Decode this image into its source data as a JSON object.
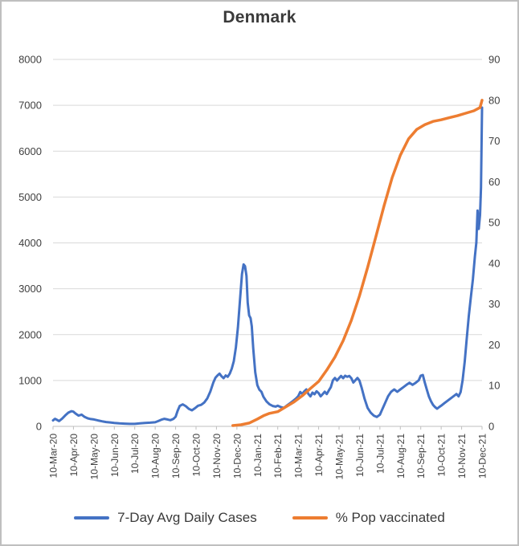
{
  "chart_data": {
    "type": "line",
    "title": "Denmark",
    "grid": "horizontal",
    "legend_position": "bottom",
    "x_range": [
      0,
      21
    ],
    "x_tick_labels": [
      "10-Mar-20",
      "10-Apr-20",
      "10-May-20",
      "10-Jun-20",
      "10-Jul-20",
      "10-Aug-20",
      "10-Sep-20",
      "10-Oct-20",
      "10-Nov-20",
      "10-Dec-20",
      "10-Jan-21",
      "10-Feb-21",
      "10-Mar-21",
      "10-Apr-21",
      "10-May-21",
      "10-Jun-21",
      "10-Jul-21",
      "10-Aug-21",
      "10-Sep-21",
      "10-Oct-21",
      "10-Nov-21",
      "10-Dec-21"
    ],
    "left_axis": {
      "min": 0,
      "max": 8000,
      "step": 1000
    },
    "right_axis": {
      "min": 0,
      "max": 90,
      "step": 10
    },
    "series": [
      {
        "name": "7-Day Avg Daily Cases",
        "axis": "left",
        "color": "#4472C4",
        "width": 3,
        "points": [
          [
            0.0,
            130
          ],
          [
            0.1,
            165
          ],
          [
            0.2,
            140
          ],
          [
            0.3,
            115
          ],
          [
            0.45,
            170
          ],
          [
            0.6,
            240
          ],
          [
            0.75,
            300
          ],
          [
            0.9,
            330
          ],
          [
            1.0,
            320
          ],
          [
            1.1,
            280
          ],
          [
            1.25,
            235
          ],
          [
            1.4,
            255
          ],
          [
            1.55,
            205
          ],
          [
            1.7,
            175
          ],
          [
            1.85,
            160
          ],
          [
            2.0,
            150
          ],
          [
            2.2,
            130
          ],
          [
            2.4,
            110
          ],
          [
            2.6,
            95
          ],
          [
            2.8,
            85
          ],
          [
            3.0,
            75
          ],
          [
            3.25,
            65
          ],
          [
            3.5,
            60
          ],
          [
            3.75,
            55
          ],
          [
            4.0,
            55
          ],
          [
            4.25,
            65
          ],
          [
            4.5,
            75
          ],
          [
            4.75,
            80
          ],
          [
            5.0,
            90
          ],
          [
            5.15,
            115
          ],
          [
            5.3,
            145
          ],
          [
            5.45,
            165
          ],
          [
            5.6,
            150
          ],
          [
            5.75,
            135
          ],
          [
            5.9,
            165
          ],
          [
            6.0,
            210
          ],
          [
            6.1,
            340
          ],
          [
            6.2,
            445
          ],
          [
            6.35,
            480
          ],
          [
            6.5,
            440
          ],
          [
            6.65,
            380
          ],
          [
            6.8,
            350
          ],
          [
            6.95,
            395
          ],
          [
            7.1,
            450
          ],
          [
            7.25,
            470
          ],
          [
            7.4,
            520
          ],
          [
            7.55,
            610
          ],
          [
            7.7,
            760
          ],
          [
            7.85,
            960
          ],
          [
            7.95,
            1060
          ],
          [
            8.05,
            1110
          ],
          [
            8.15,
            1150
          ],
          [
            8.25,
            1090
          ],
          [
            8.35,
            1050
          ],
          [
            8.45,
            1110
          ],
          [
            8.55,
            1080
          ],
          [
            8.65,
            1150
          ],
          [
            8.75,
            1260
          ],
          [
            8.85,
            1420
          ],
          [
            8.95,
            1720
          ],
          [
            9.05,
            2150
          ],
          [
            9.15,
            2750
          ],
          [
            9.25,
            3320
          ],
          [
            9.33,
            3530
          ],
          [
            9.4,
            3490
          ],
          [
            9.47,
            3280
          ],
          [
            9.53,
            2700
          ],
          [
            9.6,
            2420
          ],
          [
            9.67,
            2360
          ],
          [
            9.73,
            2180
          ],
          [
            9.8,
            1700
          ],
          [
            9.9,
            1180
          ],
          [
            10.0,
            900
          ],
          [
            10.1,
            800
          ],
          [
            10.2,
            755
          ],
          [
            10.3,
            645
          ],
          [
            10.45,
            545
          ],
          [
            10.6,
            480
          ],
          [
            10.75,
            445
          ],
          [
            10.9,
            430
          ],
          [
            11.0,
            450
          ],
          [
            11.15,
            420
          ],
          [
            11.3,
            405
          ],
          [
            11.45,
            455
          ],
          [
            11.6,
            505
          ],
          [
            11.75,
            555
          ],
          [
            11.9,
            610
          ],
          [
            12.0,
            655
          ],
          [
            12.1,
            750
          ],
          [
            12.2,
            705
          ],
          [
            12.3,
            765
          ],
          [
            12.4,
            805
          ],
          [
            12.5,
            705
          ],
          [
            12.6,
            655
          ],
          [
            12.7,
            735
          ],
          [
            12.8,
            700
          ],
          [
            12.9,
            765
          ],
          [
            13.0,
            725
          ],
          [
            13.1,
            655
          ],
          [
            13.2,
            705
          ],
          [
            13.3,
            755
          ],
          [
            13.4,
            705
          ],
          [
            13.5,
            785
          ],
          [
            13.6,
            855
          ],
          [
            13.7,
            1005
          ],
          [
            13.8,
            1055
          ],
          [
            13.9,
            1000
          ],
          [
            14.0,
            1050
          ],
          [
            14.1,
            1100
          ],
          [
            14.2,
            1050
          ],
          [
            14.3,
            1105
          ],
          [
            14.4,
            1080
          ],
          [
            14.5,
            1100
          ],
          [
            14.6,
            1050
          ],
          [
            14.7,
            955
          ],
          [
            14.8,
            1005
          ],
          [
            14.9,
            1055
          ],
          [
            15.0,
            1000
          ],
          [
            15.1,
            850
          ],
          [
            15.25,
            600
          ],
          [
            15.4,
            400
          ],
          [
            15.55,
            300
          ],
          [
            15.7,
            235
          ],
          [
            15.85,
            205
          ],
          [
            16.0,
            255
          ],
          [
            16.1,
            355
          ],
          [
            16.25,
            505
          ],
          [
            16.4,
            655
          ],
          [
            16.55,
            755
          ],
          [
            16.7,
            805
          ],
          [
            16.85,
            755
          ],
          [
            17.0,
            805
          ],
          [
            17.15,
            855
          ],
          [
            17.3,
            905
          ],
          [
            17.45,
            950
          ],
          [
            17.6,
            905
          ],
          [
            17.75,
            950
          ],
          [
            17.9,
            1005
          ],
          [
            18.0,
            1105
          ],
          [
            18.1,
            1120
          ],
          [
            18.2,
            950
          ],
          [
            18.3,
            800
          ],
          [
            18.4,
            650
          ],
          [
            18.5,
            550
          ],
          [
            18.6,
            470
          ],
          [
            18.7,
            420
          ],
          [
            18.8,
            385
          ],
          [
            18.9,
            420
          ],
          [
            19.0,
            450
          ],
          [
            19.15,
            505
          ],
          [
            19.3,
            555
          ],
          [
            19.45,
            605
          ],
          [
            19.6,
            655
          ],
          [
            19.75,
            705
          ],
          [
            19.85,
            655
          ],
          [
            19.95,
            745
          ],
          [
            20.05,
            1005
          ],
          [
            20.15,
            1405
          ],
          [
            20.25,
            1905
          ],
          [
            20.35,
            2405
          ],
          [
            20.45,
            2805
          ],
          [
            20.55,
            3205
          ],
          [
            20.65,
            3705
          ],
          [
            20.72,
            4005
          ],
          [
            20.78,
            4705
          ],
          [
            20.84,
            4305
          ],
          [
            20.9,
            4605
          ],
          [
            20.95,
            5205
          ],
          [
            21.0,
            6950
          ]
        ]
      },
      {
        "name": "% Pop vaccinated",
        "axis": "right",
        "color": "#ED7D31",
        "width": 3.5,
        "points": [
          [
            8.8,
            0.2
          ],
          [
            9.2,
            0.4
          ],
          [
            9.6,
            0.8
          ],
          [
            10.0,
            1.8
          ],
          [
            10.3,
            2.6
          ],
          [
            10.6,
            3.2
          ],
          [
            11.0,
            3.6
          ],
          [
            11.4,
            4.8
          ],
          [
            11.8,
            6.0
          ],
          [
            12.2,
            7.5
          ],
          [
            12.6,
            9.3
          ],
          [
            13.0,
            11.0
          ],
          [
            13.4,
            13.8
          ],
          [
            13.8,
            17.0
          ],
          [
            14.2,
            21.0
          ],
          [
            14.6,
            26.0
          ],
          [
            15.0,
            32.0
          ],
          [
            15.4,
            39.0
          ],
          [
            15.8,
            46.5
          ],
          [
            16.2,
            54.0
          ],
          [
            16.6,
            61.0
          ],
          [
            17.0,
            66.5
          ],
          [
            17.4,
            70.5
          ],
          [
            17.8,
            72.8
          ],
          [
            18.2,
            74.0
          ],
          [
            18.6,
            74.8
          ],
          [
            19.0,
            75.2
          ],
          [
            19.4,
            75.7
          ],
          [
            19.8,
            76.2
          ],
          [
            20.2,
            76.8
          ],
          [
            20.6,
            77.4
          ],
          [
            20.9,
            78.2
          ],
          [
            21.0,
            80.0
          ]
        ]
      }
    ]
  }
}
